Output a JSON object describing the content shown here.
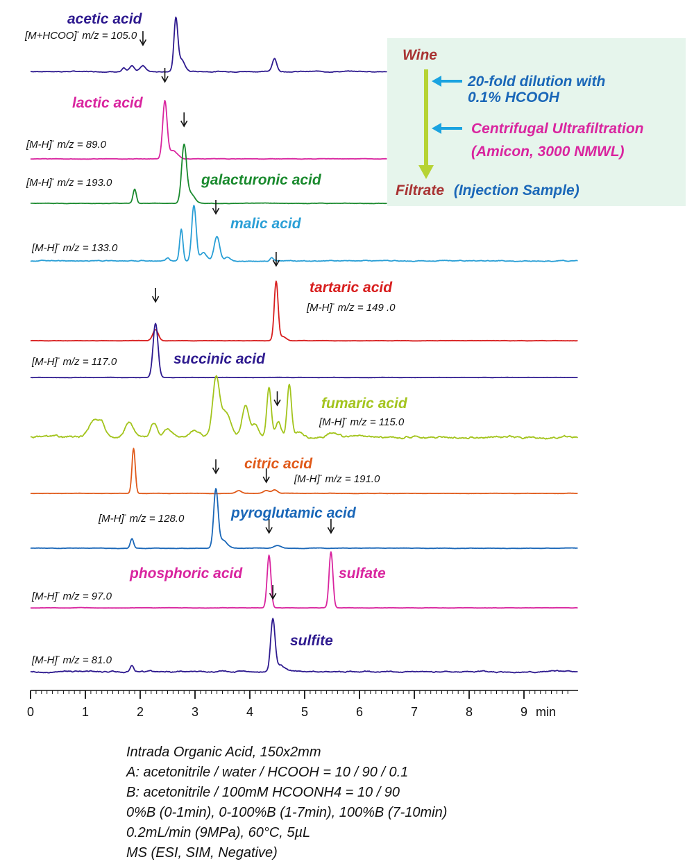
{
  "chart_data": {
    "type": "line",
    "xlabel": "min",
    "xlim": [
      0,
      10
    ],
    "x_ticks": [
      "0",
      "1",
      "2",
      "3",
      "4",
      "5",
      "6",
      "7",
      "8",
      "9"
    ],
    "series": [
      {
        "name": "acetic acid",
        "ion_prefix": "[M+HCOO]",
        "ion_suffix": " m/z = 105.0",
        "color": "#2e1a8f",
        "marker_time": 2.05,
        "noise": 0.6,
        "peaks": [
          [
            1.7,
            5,
            0.03
          ],
          [
            1.85,
            8,
            0.04
          ],
          [
            2.05,
            9,
            0.05
          ],
          [
            2.65,
            78,
            0.035
          ],
          [
            2.75,
            18,
            0.06
          ],
          [
            4.45,
            20,
            0.04
          ]
        ]
      },
      {
        "name": "lactic acid",
        "ion_prefix": "[M-H]",
        "ion_suffix": " m/z = 89.0",
        "color": "#d9259f",
        "marker_time": 2.45,
        "noise": 0.3,
        "peaks": [
          [
            2.45,
            82,
            0.04
          ],
          [
            2.6,
            12,
            0.08
          ]
        ]
      },
      {
        "name": "galacturonic acid",
        "ion_prefix": "[M-H]",
        "ion_suffix": " m/z = 193.0",
        "color": "#1a8a2e",
        "marker_time": 2.8,
        "noise": 0.3,
        "peaks": [
          [
            1.9,
            20,
            0.03
          ],
          [
            2.8,
            82,
            0.045
          ],
          [
            2.92,
            14,
            0.07
          ]
        ]
      },
      {
        "name": "malic acid",
        "ion_prefix": "[M-H]",
        "ion_suffix": " m/z = 133.0",
        "color": "#2a9fd6",
        "marker_time": 3.38,
        "noise": 0.6,
        "peaks": [
          [
            2.5,
            4,
            0.03
          ],
          [
            2.75,
            46,
            0.03
          ],
          [
            2.98,
            80,
            0.04
          ],
          [
            3.15,
            12,
            0.06
          ],
          [
            3.4,
            35,
            0.05
          ],
          [
            3.6,
            5,
            0.05
          ],
          [
            4.4,
            5,
            0.03
          ]
        ]
      },
      {
        "name": "tartaric acid",
        "ion_prefix": "[M-H]",
        "ion_suffix": " m/z = 149 .0",
        "color": "#d81e1e",
        "marker_time": 4.48,
        "noise": 0.2,
        "peaks": [
          [
            2.28,
            16,
            0.05
          ],
          [
            4.48,
            85,
            0.035
          ],
          [
            4.6,
            6,
            0.06
          ]
        ]
      },
      {
        "name": "succinic acid",
        "ion_prefix": "[M-H]",
        "ion_suffix": " m/z = 117.0",
        "color": "#2e1a8f",
        "marker_time": 2.28,
        "noise": 0.2,
        "peaks": [
          [
            2.28,
            82,
            0.045
          ]
        ]
      },
      {
        "name": "fumaric acid",
        "ion_prefix": "[M-H]",
        "ion_suffix": " m/z = 115.0",
        "color": "#a3c41d",
        "marker_time": 4.5,
        "noise": 1.6,
        "peaks": [
          [
            1.15,
            25,
            0.08
          ],
          [
            1.3,
            20,
            0.06
          ],
          [
            1.8,
            22,
            0.08
          ],
          [
            2.25,
            20,
            0.06
          ],
          [
            2.5,
            12,
            0.08
          ],
          [
            3.0,
            10,
            0.1
          ],
          [
            3.38,
            80,
            0.06
          ],
          [
            3.55,
            35,
            0.1
          ],
          [
            3.92,
            45,
            0.06
          ],
          [
            4.1,
            18,
            0.06
          ],
          [
            4.35,
            72,
            0.04
          ],
          [
            4.52,
            22,
            0.05
          ],
          [
            4.72,
            75,
            0.04
          ],
          [
            4.9,
            8,
            0.06
          ],
          [
            5.5,
            6,
            0.1
          ]
        ]
      },
      {
        "name": "citric acid",
        "ion_prefix": "[M-H]",
        "ion_suffix": " m/z = 191.0",
        "color": "#e05a1a",
        "marker_time": 4.3,
        "noise": 0.2,
        "peaks": [
          [
            1.88,
            65,
            0.03
          ],
          [
            3.8,
            4,
            0.05
          ],
          [
            4.3,
            4,
            0.05
          ],
          [
            4.45,
            5,
            0.05
          ]
        ]
      },
      {
        "name": "pyroglutamic acid",
        "ion_prefix": "[M-H]",
        "ion_suffix": " m/z = 128.0",
        "color": "#1a67b8",
        "marker_time": 3.38,
        "noise": 0.3,
        "peaks": [
          [
            1.85,
            14,
            0.03
          ],
          [
            3.38,
            82,
            0.04
          ],
          [
            3.5,
            12,
            0.08
          ],
          [
            4.5,
            4,
            0.06
          ]
        ]
      },
      {
        "name": "phosphoric acid",
        "ion_prefix": "[M-H]",
        "ion_suffix": " m/z = 97.0",
        "color": "#d9259f",
        "marker_time": 4.35,
        "noise": 0.2,
        "peaks": [
          [
            4.35,
            80,
            0.035
          ],
          [
            5.48,
            85,
            0.035
          ]
        ]
      },
      {
        "name": "sulfate",
        "ion_prefix": "",
        "ion_suffix": "",
        "color": "#d9259f",
        "marker_time": 5.48,
        "noise": 0,
        "peaks": []
      },
      {
        "name": "sulfite",
        "ion_prefix": "[M-H]",
        "ion_suffix": " m/z = 81.0",
        "color": "#2e1a8f",
        "marker_time": 4.42,
        "noise": 1.0,
        "peaks": [
          [
            1.85,
            10,
            0.03
          ],
          [
            4.42,
            78,
            0.04
          ],
          [
            4.55,
            10,
            0.08
          ]
        ]
      }
    ],
    "flowchart": {
      "start": "Wine",
      "step1_line1": "20-fold dilution with",
      "step1_line2": "0.1% HCOOH",
      "step2_line1": "Centrifugal Ultrafiltration",
      "step2_line2": "(Amicon, 3000 NMWL)",
      "end": "Filtrate",
      "end_note": "(Injection Sample)",
      "colors": {
        "box": "#e6f5ec",
        "wine": "#a83232",
        "step1": "#1a67b8",
        "step2": "#d9259f",
        "arrow": "#b6d334",
        "pointer": "#1aa3e0"
      }
    },
    "conditions": [
      "Intrada Organic Acid, 150x2mm",
      "A: acetonitrile / water / HCOOH = 10 / 90 / 0.1",
      "B: acetonitrile / 100mM HCOONH4 = 10 / 90",
      "0%B (0-1min), 0-100%B (1-7min), 100%B (7-10min)",
      "0.2mL/min (9MPa), 60°C,  5µL",
      "MS (ESI, SIM, Negative)"
    ],
    "ion_charge": "-"
  }
}
